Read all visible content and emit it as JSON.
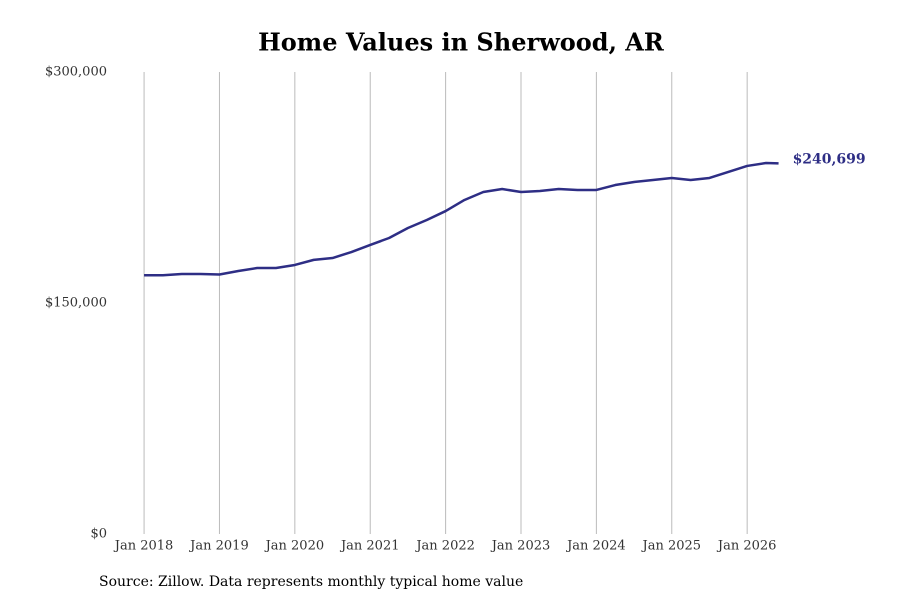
{
  "chart_data": {
    "type": "line",
    "title": "Home Values in Sherwood, AR",
    "source": "Source: Zillow. Data represents monthly typical home value",
    "x": [
      2018,
      2018.25,
      2018.5,
      2018.75,
      2019,
      2019.25,
      2019.5,
      2019.75,
      2020,
      2020.25,
      2020.5,
      2020.75,
      2021,
      2021.25,
      2021.5,
      2021.75,
      2022,
      2022.25,
      2022.5,
      2022.75,
      2023,
      2023.25,
      2023.5,
      2023.75,
      2024,
      2024.25,
      2024.5,
      2024.75,
      2025,
      2025.25,
      2025.5,
      2025.75,
      2026,
      2026.25,
      2026.4167
    ],
    "series": [
      {
        "name": "Typical home value",
        "color": "#2e2e85",
        "values": [
          168000,
          168000,
          168800,
          168800,
          168500,
          170800,
          172700,
          172700,
          174700,
          178000,
          179200,
          183100,
          187700,
          192200,
          198700,
          203900,
          209700,
          216900,
          222100,
          224000,
          222100,
          222700,
          224000,
          223400,
          223400,
          226600,
          228600,
          229900,
          231200,
          229900,
          231200,
          235100,
          239000,
          240900,
          240699
        ],
        "value_labels": [
          null,
          null,
          null,
          null,
          null,
          null,
          null,
          null,
          null,
          null,
          null,
          null,
          null,
          null,
          null,
          null,
          null,
          null,
          null,
          null,
          null,
          null,
          null,
          null,
          null,
          null,
          null,
          null,
          null,
          null,
          null,
          null,
          null,
          null,
          "$240,699"
        ]
      }
    ],
    "xlim": [
      2017.8,
      2026.9
    ],
    "xticks": [
      {
        "value": 2018,
        "label": "Jan 2018"
      },
      {
        "value": 2019,
        "label": "Jan 2019"
      },
      {
        "value": 2020,
        "label": "Jan 2020"
      },
      {
        "value": 2021,
        "label": "Jan 2021"
      },
      {
        "value": 2022,
        "label": "Jan 2022"
      },
      {
        "value": 2023,
        "label": "Jan 2023"
      },
      {
        "value": 2024,
        "label": "Jan 2024"
      },
      {
        "value": 2025,
        "label": "Jan 2025"
      },
      {
        "value": 2026,
        "label": "Jan 2026"
      }
    ],
    "ylim": [
      0,
      300000
    ],
    "yticks": [
      {
        "value": 0,
        "label": "$0"
      },
      {
        "value": 150000,
        "label": "$150,000"
      },
      {
        "value": 300000,
        "label": "$300,000"
      }
    ],
    "grid": "x"
  }
}
